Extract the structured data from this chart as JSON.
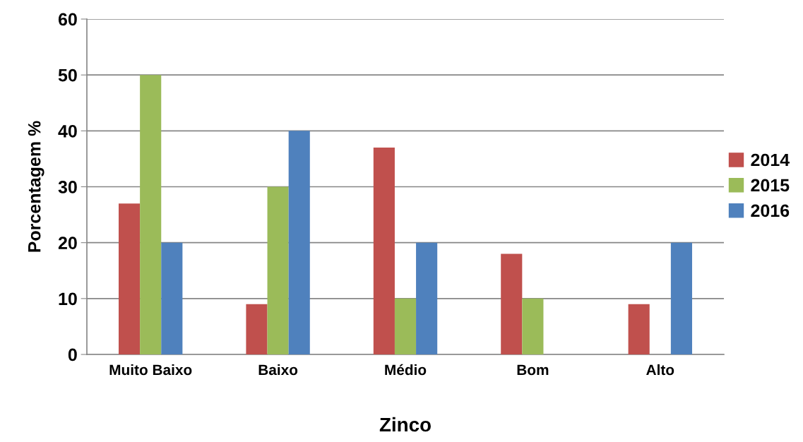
{
  "chart_data": {
    "type": "bar",
    "xlabel": "Zinco",
    "ylabel": "Porcentagem %",
    "categories": [
      "Muito Baixo",
      "Baixo",
      "Médio",
      "Bom",
      "Alto"
    ],
    "series": [
      {
        "name": "2014",
        "color": "#c0504d",
        "values": [
          27,
          9,
          37,
          18,
          9
        ]
      },
      {
        "name": "2015",
        "color": "#9bbb59",
        "values": [
          50,
          30,
          10,
          10,
          0
        ]
      },
      {
        "name": "2016",
        "color": "#4f81bd",
        "values": [
          20,
          40,
          20,
          0,
          20
        ]
      }
    ],
    "ylim": [
      0,
      60
    ],
    "yticks": [
      0,
      10,
      20,
      30,
      40,
      50,
      60
    ],
    "grid": "y",
    "legend": "right"
  }
}
